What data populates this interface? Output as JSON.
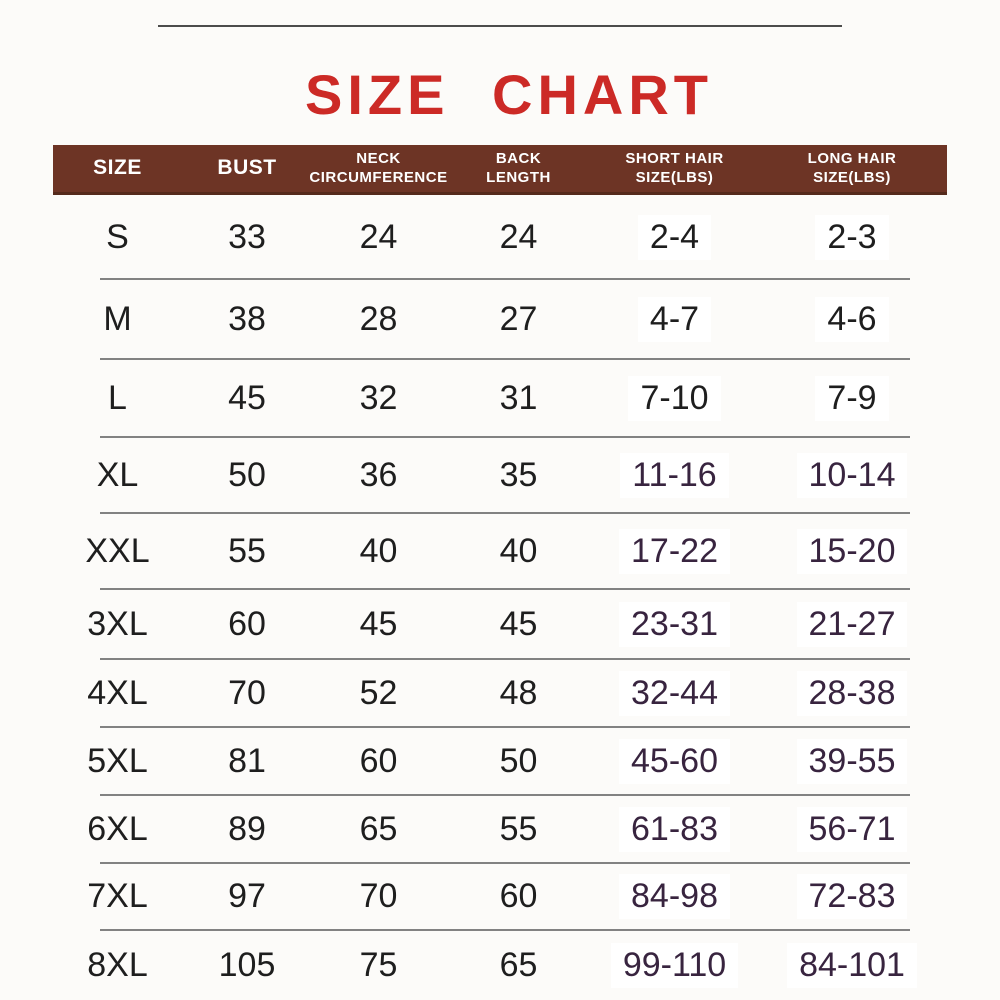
{
  "page": {
    "title": "SIZE CHART"
  },
  "colors": {
    "page_bg": "#fcfbf9",
    "title_red": "#cc2a26",
    "header_brown": "#6d3425",
    "header_brown_dark": "#552a1c",
    "header_text": "#ffffff",
    "value_dark": "#1e1e1e",
    "value_purple": "#38243f",
    "separator_gray": "#828282",
    "top_line_gray": "#4c4c4c",
    "patch_white": "#ffffff"
  },
  "table": {
    "headers": [
      {
        "line1": "SIZE",
        "line2": ""
      },
      {
        "line1": "BUST",
        "line2": ""
      },
      {
        "line1": "NECK",
        "line2": "CIRCUMFERENCE"
      },
      {
        "line1": "BACK",
        "line2": "LENGTH"
      },
      {
        "line1": "SHORT HAIR",
        "line2": "SIZE(LBS)"
      },
      {
        "line1": "LONG HAIR",
        "line2": "SIZE(LBS)"
      }
    ],
    "rows": [
      {
        "size": "S",
        "bust": "33",
        "neck": "24",
        "back": "24",
        "short_hair": "2-4",
        "long_hair": "2-3"
      },
      {
        "size": "M",
        "bust": "38",
        "neck": "28",
        "back": "27",
        "short_hair": "4-7",
        "long_hair": "4-6"
      },
      {
        "size": "L",
        "bust": "45",
        "neck": "32",
        "back": "31",
        "short_hair": "7-10",
        "long_hair": "7-9"
      },
      {
        "size": "XL",
        "bust": "50",
        "neck": "36",
        "back": "35",
        "short_hair": "11-16",
        "long_hair": "10-14"
      },
      {
        "size": "XXL",
        "bust": "55",
        "neck": "40",
        "back": "40",
        "short_hair": "17-22",
        "long_hair": "15-20"
      },
      {
        "size": "3XL",
        "bust": "60",
        "neck": "45",
        "back": "45",
        "short_hair": "23-31",
        "long_hair": "21-27"
      },
      {
        "size": "4XL",
        "bust": "70",
        "neck": "52",
        "back": "48",
        "short_hair": "32-44",
        "long_hair": "28-38"
      },
      {
        "size": "5XL",
        "bust": "81",
        "neck": "60",
        "back": "50",
        "short_hair": "45-60",
        "long_hair": "39-55"
      },
      {
        "size": "6XL",
        "bust": "89",
        "neck": "65",
        "back": "55",
        "short_hair": "61-83",
        "long_hair": "56-71"
      },
      {
        "size": "7XL",
        "bust": "97",
        "neck": "70",
        "back": "60",
        "short_hair": "84-98",
        "long_hair": "72-83"
      },
      {
        "size": "8XL",
        "bust": "105",
        "neck": "75",
        "back": "65",
        "short_hair": "99-110",
        "long_hair": "84-101"
      }
    ]
  },
  "chart_data": {
    "type": "table",
    "title": "SIZE CHART",
    "columns": [
      "SIZE",
      "BUST",
      "NECK CIRCUMFERENCE",
      "BACK LENGTH",
      "SHORT HAIR SIZE(LBS)",
      "LONG HAIR SIZE(LBS)"
    ],
    "rows": [
      [
        "S",
        33,
        24,
        24,
        "2-4",
        "2-3"
      ],
      [
        "M",
        38,
        28,
        27,
        "4-7",
        "4-6"
      ],
      [
        "L",
        45,
        32,
        31,
        "7-10",
        "7-9"
      ],
      [
        "XL",
        50,
        36,
        35,
        "11-16",
        "10-14"
      ],
      [
        "XXL",
        55,
        40,
        40,
        "17-22",
        "15-20"
      ],
      [
        "3XL",
        60,
        45,
        45,
        "23-31",
        "21-27"
      ],
      [
        "4XL",
        70,
        52,
        48,
        "32-44",
        "28-38"
      ],
      [
        "5XL",
        81,
        60,
        50,
        "45-60",
        "39-55"
      ],
      [
        "6XL",
        89,
        65,
        55,
        "61-83",
        "56-71"
      ],
      [
        "7XL",
        97,
        70,
        60,
        "84-98",
        "72-83"
      ],
      [
        "8XL",
        105,
        75,
        65,
        "99-110",
        "84-101"
      ]
    ]
  }
}
